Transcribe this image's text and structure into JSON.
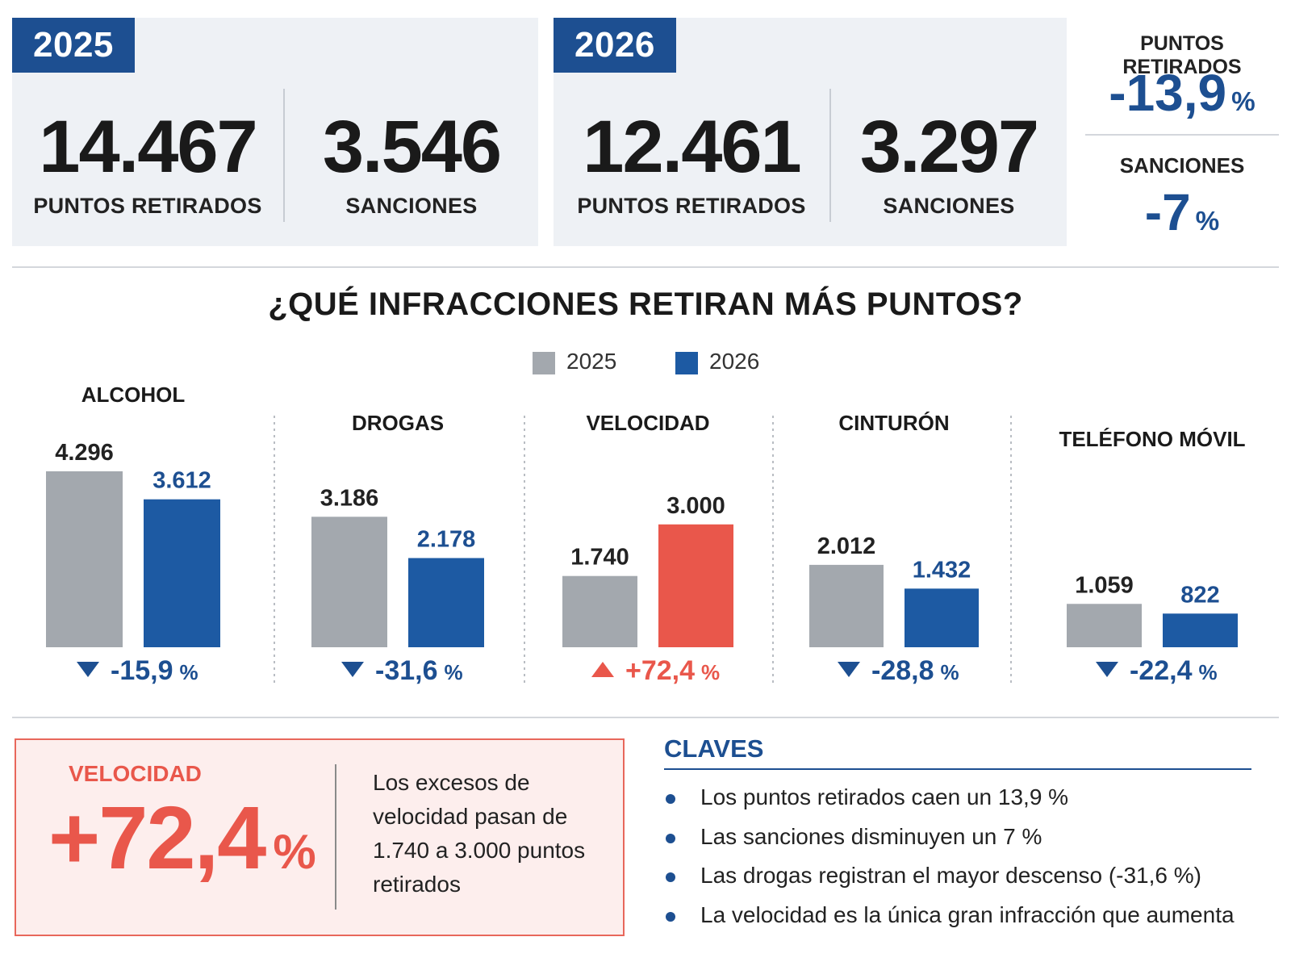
{
  "summary": {
    "y2025": {
      "year": "2025",
      "points": "14.467",
      "points_label": "PUNTOS RETIRADOS",
      "sanctions": "3.546",
      "sanctions_label": "SANCIONES"
    },
    "y2026": {
      "year": "2026",
      "points": "12.461",
      "points_label": "PUNTOS RETIRADOS",
      "sanctions": "3.297",
      "sanctions_label": "SANCIONES"
    },
    "change": {
      "points_title": "PUNTOS RETIRADOS",
      "points_value": "-13,9",
      "sanctions_title": "SANCIONES",
      "sanctions_value": "-7",
      "unit": "%"
    }
  },
  "chart_data": {
    "type": "bar",
    "title": "¿QUÉ INFRACCIONES RETIRAN MÁS PUNTOS?",
    "legend": [
      "2025",
      "2026"
    ],
    "legend_placement": "top-center",
    "grid": false,
    "categories": [
      "ALCOHOL",
      "DROGAS",
      "VELOCIDAD",
      "CINTURÓN",
      "TELÉFONO MÓVIL"
    ],
    "series": [
      {
        "name": "2025",
        "values": [
          4296,
          3186,
          1740,
          2012,
          1059
        ],
        "labels": [
          "4.296",
          "3.186",
          "1.740",
          "2.012",
          "1.059"
        ]
      },
      {
        "name": "2026",
        "values": [
          3612,
          2178,
          3000,
          1432,
          822
        ],
        "labels": [
          "3.612",
          "2.178",
          "3.000",
          "1.432",
          "822"
        ]
      }
    ],
    "changes": [
      "-15,9",
      "-31,6",
      "+72,4",
      "-28,8",
      "-22,4"
    ],
    "change_direction": [
      "down",
      "down",
      "up",
      "down",
      "down"
    ],
    "change_unit": "%",
    "colors": {
      "2025": "#a3a8ae",
      "2026": "#1d5aa3",
      "increase": "#e9574b"
    }
  },
  "callout": {
    "label": "VELOCIDAD",
    "value": "+72,4",
    "unit": "%",
    "text_lines": [
      "Los excesos de",
      "velocidad pasan de",
      "1.740 a 3.000 puntos",
      "retirados"
    ]
  },
  "claves": {
    "title": "CLAVES",
    "items": [
      "Los puntos retirados caen un 13,9 %",
      "Las sanciones disminuyen un 7 %",
      "Las drogas registran el mayor descenso (-31,6 %)",
      "La velocidad es la única gran infracción que aumenta"
    ]
  },
  "colors": {
    "blue": "#1d4f91",
    "red": "#e9574b",
    "grey": "#a3a8ae"
  }
}
